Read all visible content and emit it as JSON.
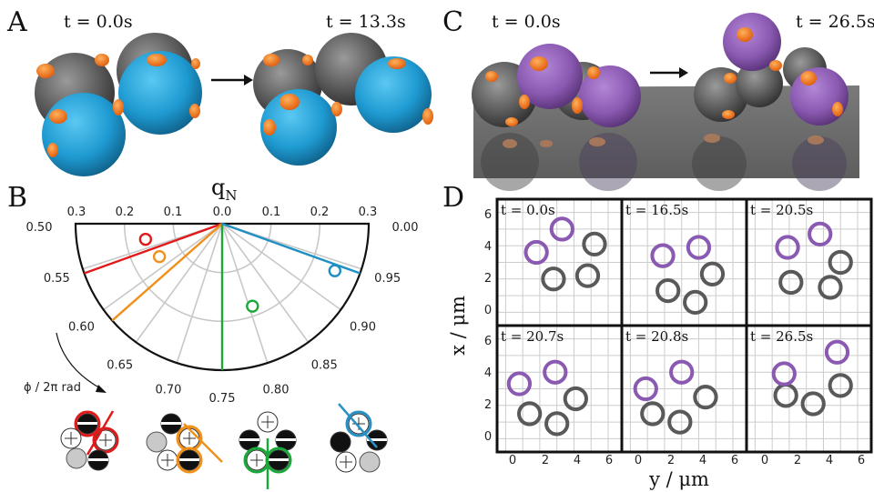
{
  "panels": {
    "A": {
      "letter": "A",
      "t_start": "t = 0.0s",
      "t_end": "t = 13.3s"
    },
    "B": {
      "letter": "B",
      "axis_title": "q",
      "axis_title_sub": "N",
      "radial_ticks_left": [
        "0.3",
        "0.2",
        "0.1",
        "0.0"
      ],
      "radial_ticks_right": [
        "0.1",
        "0.2",
        "0.3"
      ],
      "phi_label": "ϕ / 2π rad"
    },
    "C": {
      "letter": "C",
      "t_start": "t = 0.0s",
      "t_end": "t = 26.5s"
    },
    "D": {
      "letter": "D",
      "xlabel": "y / μm",
      "ylabel": "x / μm",
      "x_ticks": [
        "0",
        "2",
        "4",
        "6"
      ],
      "y_ticks": [
        "0",
        "2",
        "4",
        "6"
      ],
      "frame_times": [
        "t = 0.0s",
        "t = 16.5s",
        "t = 20.5s",
        "t = 20.7s",
        "t = 20.8s",
        "t = 26.5s"
      ]
    }
  },
  "colors": {
    "blue": "#1e90c4",
    "purple": "#8a59b1",
    "gray": "#595959",
    "orange": "#f07a1c",
    "red": "#e01a1a",
    "amber": "#f0901a",
    "green": "#1aa83a",
    "cyan": "#2a90c4"
  },
  "chart_data": [
    {
      "type": "polar-scatter",
      "title": "",
      "radial_label": "q_N",
      "angular_label": "ϕ / 2π rad",
      "radial_range": [
        0,
        0.3
      ],
      "angular_ticks": [
        "0.50",
        "0.55",
        "0.60",
        "0.65",
        "0.70",
        "0.75",
        "0.80",
        "0.85",
        "0.90",
        "0.95",
        "0.00"
      ],
      "series": [
        {
          "color": "red",
          "phi": 0.532,
          "q": 0.16
        },
        {
          "color": "amber",
          "phi": 0.577,
          "q": 0.145
        },
        {
          "color": "green",
          "phi": 0.806,
          "q": 0.18
        },
        {
          "color": "blue",
          "phi": 0.937,
          "q": 0.25
        }
      ],
      "lines_phi": [
        0.555,
        0.615,
        0.75,
        0.945
      ]
    },
    {
      "type": "scatter",
      "title": "",
      "xlabel": "y / μm",
      "ylabel": "x / μm",
      "xlim": [
        -0.5,
        6.8
      ],
      "ylim": [
        -0.8,
        6.8
      ],
      "frames": [
        {
          "t": "t = 0.0s",
          "purple": [
            [
              3.3,
              5.0
            ],
            [
              1.8,
              3.6
            ]
          ],
          "gray": [
            [
              5.2,
              4.1
            ],
            [
              2.8,
              2.0
            ],
            [
              4.8,
              2.2
            ]
          ]
        },
        {
          "t": "t = 16.5s",
          "purple": [
            [
              1.9,
              3.4
            ],
            [
              4.0,
              3.9
            ]
          ],
          "gray": [
            [
              4.8,
              2.3
            ],
            [
              2.2,
              1.3
            ],
            [
              3.8,
              0.6
            ]
          ]
        },
        {
          "t": "t = 20.5s",
          "purple": [
            [
              1.9,
              3.9
            ],
            [
              3.8,
              4.7
            ]
          ],
          "gray": [
            [
              5.0,
              3.0
            ],
            [
              2.1,
              1.8
            ],
            [
              4.4,
              1.5
            ]
          ]
        },
        {
          "t": "t = 20.7s",
          "purple": [
            [
              0.8,
              3.3
            ],
            [
              2.9,
              4.0
            ]
          ],
          "gray": [
            [
              4.1,
              2.4
            ],
            [
              1.4,
              1.5
            ],
            [
              3.0,
              0.9
            ]
          ]
        },
        {
          "t": "t = 20.8s",
          "purple": [
            [
              0.9,
              3.0
            ],
            [
              3.0,
              4.0
            ]
          ],
          "gray": [
            [
              4.4,
              2.5
            ],
            [
              1.3,
              1.5
            ],
            [
              2.9,
              1.0
            ]
          ]
        },
        {
          "t": "t = 26.5s",
          "purple": [
            [
              1.7,
              3.9
            ],
            [
              4.8,
              5.2
            ]
          ],
          "gray": [
            [
              5.0,
              3.2
            ],
            [
              1.8,
              2.6
            ],
            [
              3.4,
              2.1
            ]
          ]
        }
      ]
    }
  ]
}
